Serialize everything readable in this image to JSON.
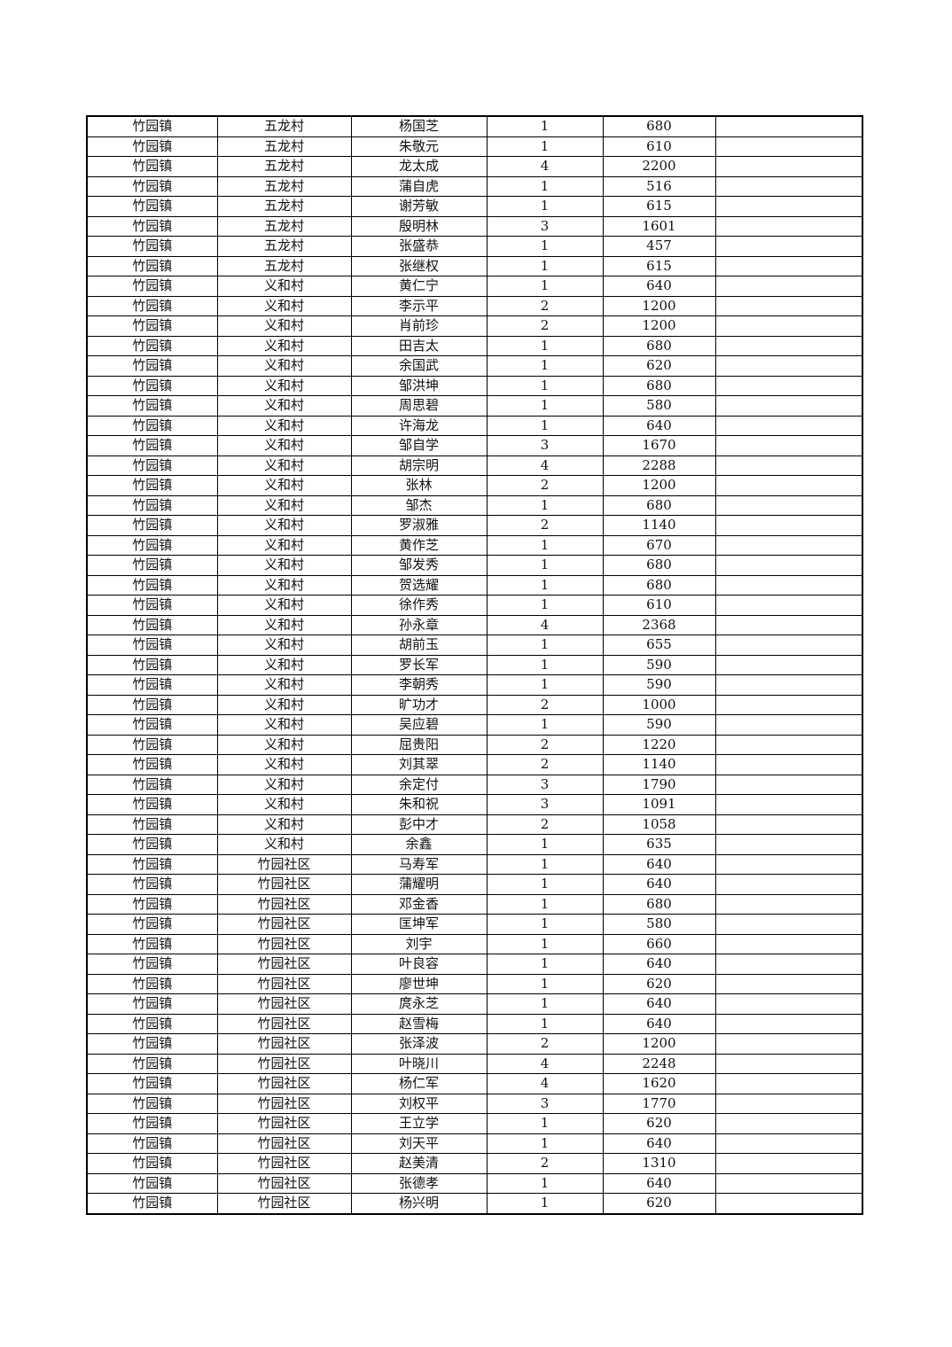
{
  "table": {
    "rows": [
      [
        "竹园镇",
        "五龙村",
        "杨国芝",
        "1",
        "680",
        ""
      ],
      [
        "竹园镇",
        "五龙村",
        "朱敬元",
        "1",
        "610",
        ""
      ],
      [
        "竹园镇",
        "五龙村",
        "龙太成",
        "4",
        "2200",
        ""
      ],
      [
        "竹园镇",
        "五龙村",
        "蒲自虎",
        "1",
        "516",
        ""
      ],
      [
        "竹园镇",
        "五龙村",
        "谢芳敏",
        "1",
        "615",
        ""
      ],
      [
        "竹园镇",
        "五龙村",
        "殷明林",
        "3",
        "1601",
        ""
      ],
      [
        "竹园镇",
        "五龙村",
        "张盛恭",
        "1",
        "457",
        ""
      ],
      [
        "竹园镇",
        "五龙村",
        "张继权",
        "1",
        "615",
        ""
      ],
      [
        "竹园镇",
        "义和村",
        "黄仁宁",
        "1",
        "640",
        ""
      ],
      [
        "竹园镇",
        "义和村",
        "李示平",
        "2",
        "1200",
        ""
      ],
      [
        "竹园镇",
        "义和村",
        "肖前珍",
        "2",
        "1200",
        ""
      ],
      [
        "竹园镇",
        "义和村",
        "田吉太",
        "1",
        "680",
        ""
      ],
      [
        "竹园镇",
        "义和村",
        "余国武",
        "1",
        "620",
        ""
      ],
      [
        "竹园镇",
        "义和村",
        "邹洪坤",
        "1",
        "680",
        ""
      ],
      [
        "竹园镇",
        "义和村",
        "周思碧",
        "1",
        "580",
        ""
      ],
      [
        "竹园镇",
        "义和村",
        "许海龙",
        "1",
        "640",
        ""
      ],
      [
        "竹园镇",
        "义和村",
        "邹自学",
        "3",
        "1670",
        ""
      ],
      [
        "竹园镇",
        "义和村",
        "胡宗明",
        "4",
        "2288",
        ""
      ],
      [
        "竹园镇",
        "义和村",
        "张林",
        "2",
        "1200",
        ""
      ],
      [
        "竹园镇",
        "义和村",
        "邹杰",
        "1",
        "680",
        ""
      ],
      [
        "竹园镇",
        "义和村",
        "罗淑雅",
        "2",
        "1140",
        ""
      ],
      [
        "竹园镇",
        "义和村",
        "黄作芝",
        "1",
        "670",
        ""
      ],
      [
        "竹园镇",
        "义和村",
        "邹发秀",
        "1",
        "680",
        ""
      ],
      [
        "竹园镇",
        "义和村",
        "贺选耀",
        "1",
        "680",
        ""
      ],
      [
        "竹园镇",
        "义和村",
        "徐作秀",
        "1",
        "610",
        ""
      ],
      [
        "竹园镇",
        "义和村",
        "孙永章",
        "4",
        "2368",
        ""
      ],
      [
        "竹园镇",
        "义和村",
        "胡前玉",
        "1",
        "655",
        ""
      ],
      [
        "竹园镇",
        "义和村",
        "罗长军",
        "1",
        "590",
        ""
      ],
      [
        "竹园镇",
        "义和村",
        "李朝秀",
        "1",
        "590",
        ""
      ],
      [
        "竹园镇",
        "义和村",
        "旷功才",
        "2",
        "1000",
        ""
      ],
      [
        "竹园镇",
        "义和村",
        "吴应碧",
        "1",
        "590",
        ""
      ],
      [
        "竹园镇",
        "义和村",
        "屈贵阳",
        "2",
        "1220",
        ""
      ],
      [
        "竹园镇",
        "义和村",
        "刘其翠",
        "2",
        "1140",
        ""
      ],
      [
        "竹园镇",
        "义和村",
        "余定付",
        "3",
        "1790",
        ""
      ],
      [
        "竹园镇",
        "义和村",
        "朱和祝",
        "3",
        "1091",
        ""
      ],
      [
        "竹园镇",
        "义和村",
        "彭中才",
        "2",
        "1058",
        ""
      ],
      [
        "竹园镇",
        "义和村",
        "余鑫",
        "1",
        "635",
        ""
      ],
      [
        "竹园镇",
        "竹园社区",
        "马寿军",
        "1",
        "640",
        ""
      ],
      [
        "竹园镇",
        "竹园社区",
        "蒲耀明",
        "1",
        "640",
        ""
      ],
      [
        "竹园镇",
        "竹园社区",
        "邓金香",
        "1",
        "680",
        ""
      ],
      [
        "竹园镇",
        "竹园社区",
        "匡坤军",
        "1",
        "580",
        ""
      ],
      [
        "竹园镇",
        "竹园社区",
        "刘宇",
        "1",
        "660",
        ""
      ],
      [
        "竹园镇",
        "竹园社区",
        "叶良容",
        "1",
        "640",
        ""
      ],
      [
        "竹园镇",
        "竹园社区",
        "廖世坤",
        "1",
        "620",
        ""
      ],
      [
        "竹园镇",
        "竹园社区",
        "庹永芝",
        "1",
        "640",
        ""
      ],
      [
        "竹园镇",
        "竹园社区",
        "赵雪梅",
        "1",
        "640",
        ""
      ],
      [
        "竹园镇",
        "竹园社区",
        "张泽波",
        "2",
        "1200",
        ""
      ],
      [
        "竹园镇",
        "竹园社区",
        "叶晓川",
        "4",
        "2248",
        ""
      ],
      [
        "竹园镇",
        "竹园社区",
        "杨仁军",
        "4",
        "1620",
        ""
      ],
      [
        "竹园镇",
        "竹园社区",
        "刘权平",
        "3",
        "1770",
        ""
      ],
      [
        "竹园镇",
        "竹园社区",
        "王立学",
        "1",
        "620",
        ""
      ],
      [
        "竹园镇",
        "竹园社区",
        "刘天平",
        "1",
        "640",
        ""
      ],
      [
        "竹园镇",
        "竹园社区",
        "赵美清",
        "2",
        "1310",
        ""
      ],
      [
        "竹园镇",
        "竹园社区",
        "张德孝",
        "1",
        "640",
        ""
      ],
      [
        "竹园镇",
        "竹园社区",
        "杨兴明",
        "1",
        "620",
        ""
      ]
    ]
  }
}
